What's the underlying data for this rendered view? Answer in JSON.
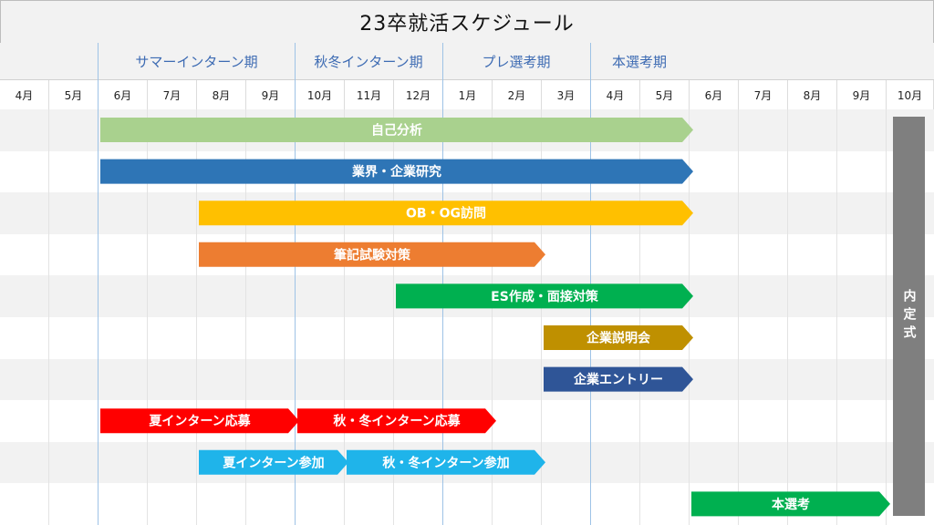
{
  "title": "23卒就活スケジュール",
  "phases": [
    "サマーインターン期",
    "秋冬インターン期",
    "プレ選考期",
    "本選考期"
  ],
  "months": [
    "4月",
    "5月",
    "6月",
    "7月",
    "8月",
    "9月",
    "10月",
    "11月",
    "12月",
    "1月",
    "2月",
    "3月",
    "4月",
    "5月",
    "6月",
    "7月",
    "8月",
    "9月",
    "10月"
  ],
  "tasks": [
    {
      "label": "自己分析",
      "color": "#a9d18e",
      "start_month": 2,
      "end_month": 14
    },
    {
      "label": "業界・企業研究",
      "color": "#2e75b6",
      "start_month": 2,
      "end_month": 14
    },
    {
      "label": "OB・OG訪問",
      "color": "#ffc000",
      "start_month": 4,
      "end_month": 14
    },
    {
      "label": "筆記試験対策",
      "color": "#ed7d31",
      "start_month": 4,
      "end_month": 11
    },
    {
      "label": "ES作成・面接対策",
      "color": "#00b050",
      "start_month": 8,
      "end_month": 14
    },
    {
      "label": "企業説明会",
      "color": "#bf9000",
      "start_month": 11,
      "end_month": 14
    },
    {
      "label": "企業エントリー",
      "color": "#2f5597",
      "start_month": 11,
      "end_month": 14
    },
    {
      "label": "夏インターン応募",
      "color": "#ff0000",
      "start_month": 2,
      "end_month": 6
    },
    {
      "label": "秋・冬インターン応募",
      "color": "#ff0000",
      "start_month": 6,
      "end_month": 10
    },
    {
      "label": "夏インターン参加",
      "color": "#1fb4ea",
      "start_month": 4,
      "end_month": 7
    },
    {
      "label": "秋・冬インターン参加",
      "color": "#1fb4ea",
      "start_month": 7,
      "end_month": 11
    },
    {
      "label": "本選考",
      "color": "#00b050",
      "start_month": 14,
      "end_month": 18
    }
  ],
  "naitei_label": "内定式"
}
